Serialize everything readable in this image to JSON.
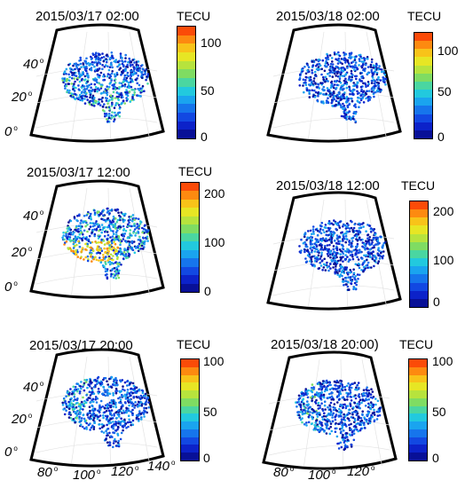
{
  "colorbar_unit": "TECU",
  "colormap": [
    "#fb4b08",
    "#fd8a10",
    "#f8c319",
    "#e7e624",
    "#b7e33d",
    "#7fdc62",
    "#4ad6a1",
    "#22c9de",
    "#1aa4ef",
    "#1675ec",
    "#1248e2",
    "#0c22c9",
    "#081097"
  ],
  "lat_ticks": [
    "40",
    "20",
    "0"
  ],
  "lon_ticks": [
    "80",
    "100",
    "120",
    "140"
  ],
  "panels": [
    {
      "title": "2015/03/17 02:00",
      "cb_ticks": [
        "100",
        "50",
        "0"
      ],
      "cb_max": 120
    },
    {
      "title": "2015/03/18 02:00",
      "cb_ticks": [
        "100",
        "50",
        "0"
      ],
      "cb_max": 120
    },
    {
      "title": "2015/03/17 12:00",
      "cb_ticks": [
        "200",
        "100",
        "0"
      ],
      "cb_max": 220
    },
    {
      "title": "2015/03/18 12:00",
      "cb_ticks": [
        "200",
        "100",
        "0"
      ],
      "cb_max": 220
    },
    {
      "title": "2015/03/17 20:00",
      "cb_ticks": [
        "100",
        "50",
        "0"
      ],
      "cb_max": 100
    },
    {
      "title": "2015/03/18 20:00)",
      "cb_ticks": [
        "100",
        "50",
        "0"
      ],
      "cb_max": 100
    }
  ]
}
